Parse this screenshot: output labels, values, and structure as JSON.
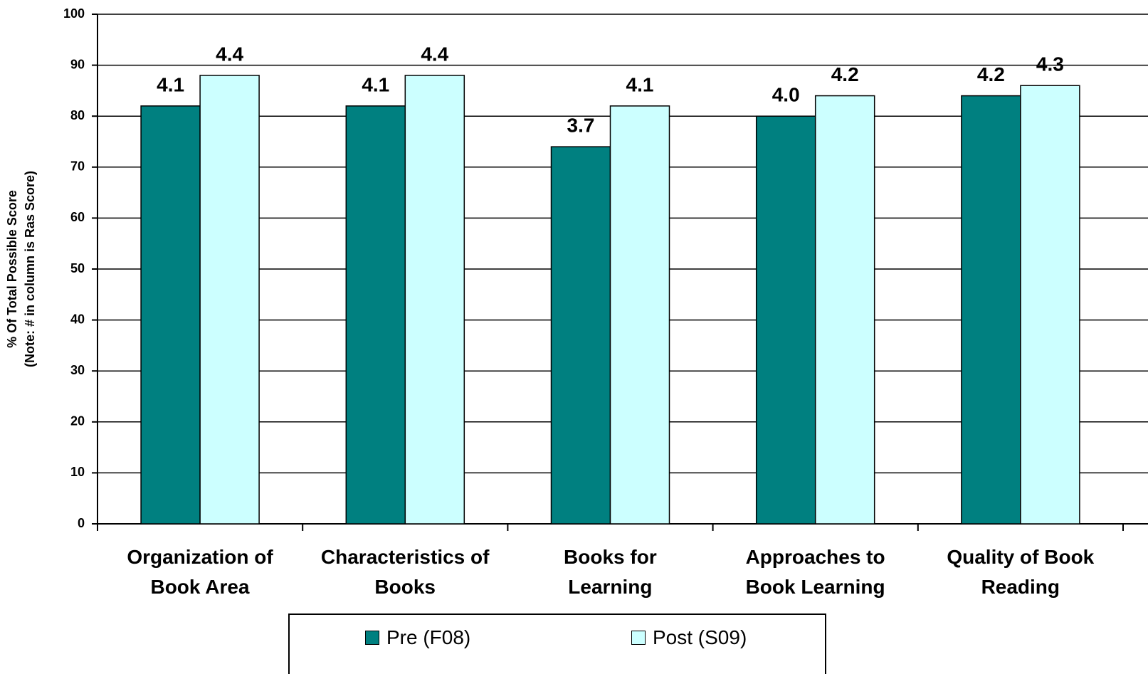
{
  "chart_data": {
    "type": "bar",
    "ylabel": "% Of Total Possible Score\n(Note: # in column is Ras Score)",
    "categories": [
      "Organization of\nBook Area",
      "Characteristics of\nBooks",
      "Books for\nLearning",
      "Approaches to\nBook Learning",
      "Quality of Book\nReading"
    ],
    "series": [
      {
        "name": "Pre (F08)",
        "color": "#008080",
        "values": [
          82,
          82,
          74,
          80,
          84
        ],
        "value_labels": [
          "4.1",
          "4.1",
          "3.7",
          "4.0",
          "4.2"
        ]
      },
      {
        "name": "Post (S09)",
        "color": "#ccffff",
        "values": [
          88,
          88,
          82,
          84,
          86
        ],
        "value_labels": [
          "4.4",
          "4.4",
          "4.1",
          "4.2",
          "4.3"
        ]
      }
    ],
    "ylim": [
      0,
      100
    ],
    "yticks": [
      0,
      10,
      20,
      30,
      40,
      50,
      60,
      70,
      80,
      90,
      100
    ],
    "grid": true,
    "legend": "bottom"
  }
}
